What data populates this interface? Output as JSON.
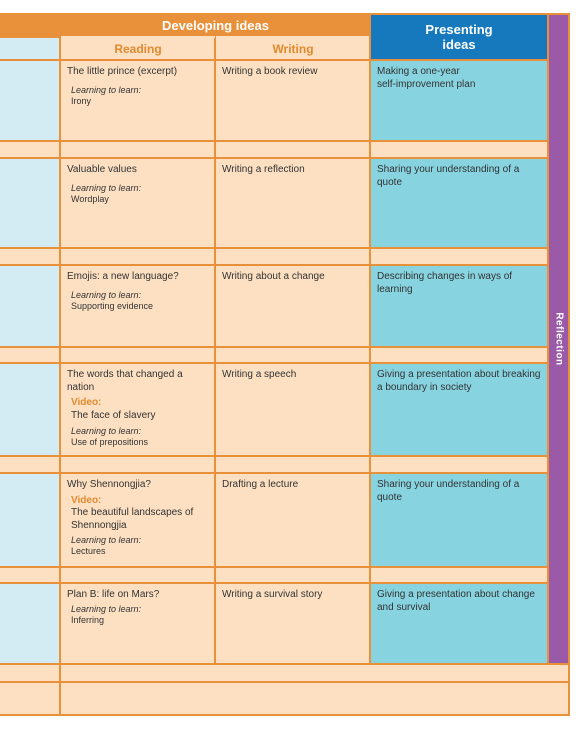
{
  "header": {
    "developing": "Developing ideas",
    "reading": "Reading",
    "writing": "Writing",
    "presenting_line1": "Presenting",
    "presenting_line2": "ideas",
    "reflection": "Reflection"
  },
  "units": [
    {
      "reading_title": "The little prince (excerpt)",
      "ll_label": "Learning to learn:",
      "ll_value": "Irony",
      "writing": "Writing a book review",
      "presenting": "Making a one-year self-improvement plan"
    },
    {
      "reading_title": "Valuable values",
      "ll_label": "Learning to learn:",
      "ll_value": "Wordplay",
      "writing": "Writing a reflection",
      "presenting": "Sharing your understanding of a quote"
    },
    {
      "reading_title": "Emojis: a new language?",
      "ll_label": "Learning to learn:",
      "ll_value": "Supporting evidence",
      "writing": "Writing about a change",
      "presenting": "Describing changes in ways of learning"
    },
    {
      "reading_title": "The words that changed a nation",
      "video_label": "Video:",
      "video_title": "The face of slavery",
      "ll_label": "Learning to learn:",
      "ll_value": "Use of prepositions",
      "writing": "Writing a speech",
      "presenting": "Giving a presentation about breaking a boundary in society"
    },
    {
      "reading_title": "Why Shennongjia?",
      "video_label": "Video:",
      "video_title": "The beautiful landscapes of Shennongjia",
      "ll_label": "Learning to learn:",
      "ll_value": "Lectures",
      "writing": "Drafting a lecture",
      "presenting": "Sharing your understanding of a quote"
    },
    {
      "reading_title": "Plan B: life on Mars?",
      "ll_label": "Learning to learn:",
      "ll_value": "Inferring",
      "writing": "Writing a survival story",
      "presenting": "Giving a presentation about change and survival"
    }
  ],
  "colors": {
    "orange": "#e9913a",
    "peach": "#fde0c2",
    "teal_light": "#d3ebf3",
    "teal": "#87d3e0",
    "blue": "#1679bd",
    "purple": "#9a5aa8"
  }
}
